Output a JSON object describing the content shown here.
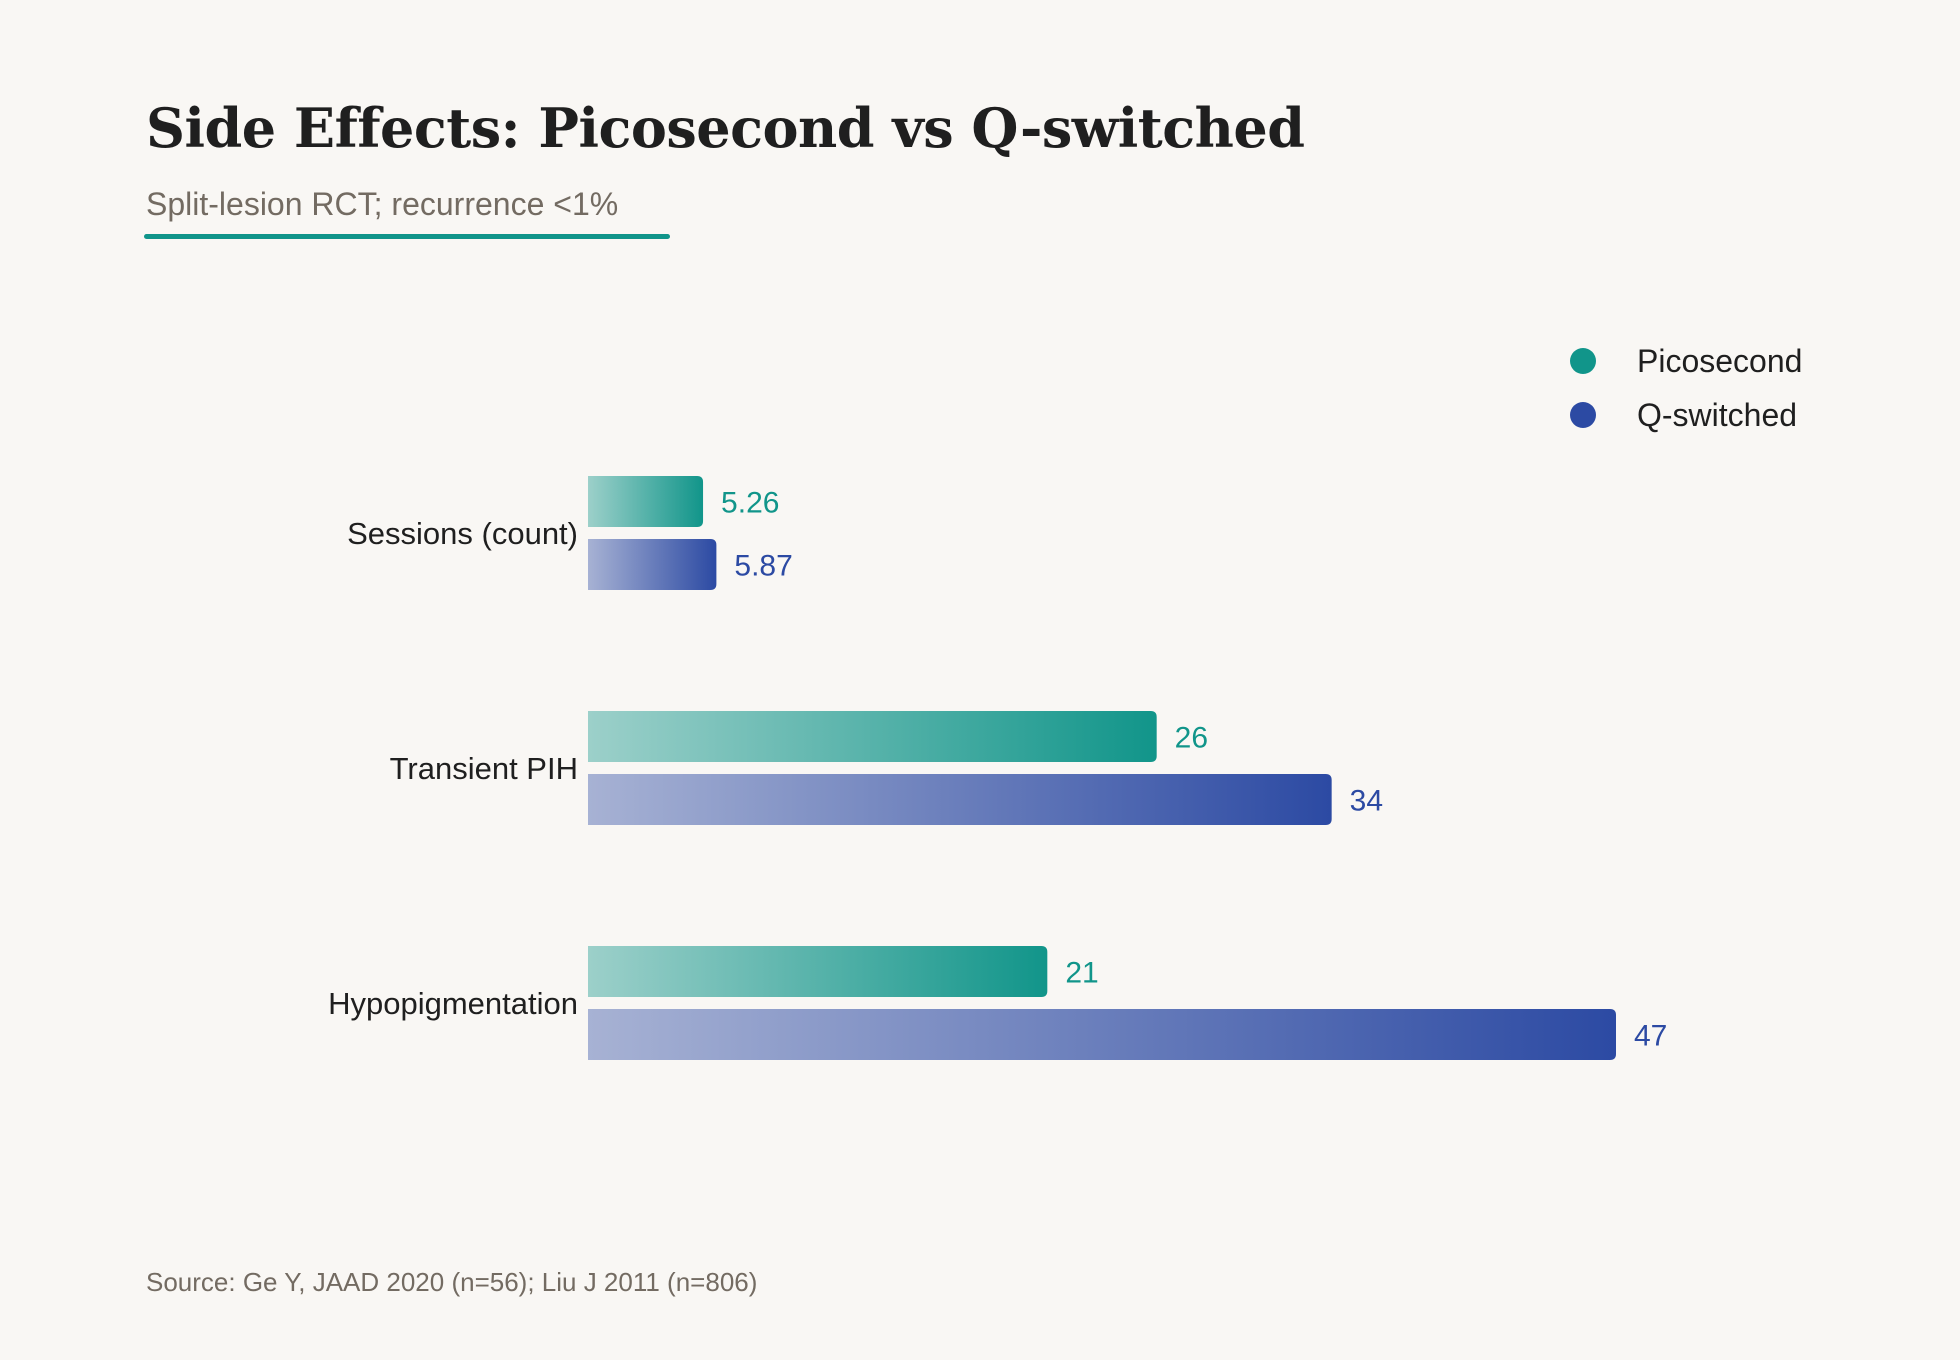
{
  "header": {
    "title": "Side Effects: Picosecond vs Q-switched",
    "subtitle": "Split-lesion RCT; recurrence <1%"
  },
  "footer": {
    "source": "Source: Ge Y, JAAD 2020 (n=56); Liu J 2011 (n=806)"
  },
  "colors": {
    "picosecond": "#11958a",
    "qswitched": "#2c4aa3",
    "accent": "#11958a"
  },
  "chart_data": {
    "type": "bar",
    "orientation": "horizontal",
    "categories": [
      "Sessions (count)",
      "Transient PIH",
      "Hypopigmentation"
    ],
    "series": [
      {
        "name": "Picosecond",
        "values": [
          5.26,
          26,
          21
        ],
        "labels": [
          "5.26",
          "26",
          "21"
        ]
      },
      {
        "name": "Q-switched",
        "values": [
          5.87,
          34,
          47
        ],
        "labels": [
          "5.87",
          "34",
          "47"
        ]
      }
    ],
    "xlim": [
      0,
      47
    ],
    "grid": false,
    "legend_position": "top-right"
  }
}
